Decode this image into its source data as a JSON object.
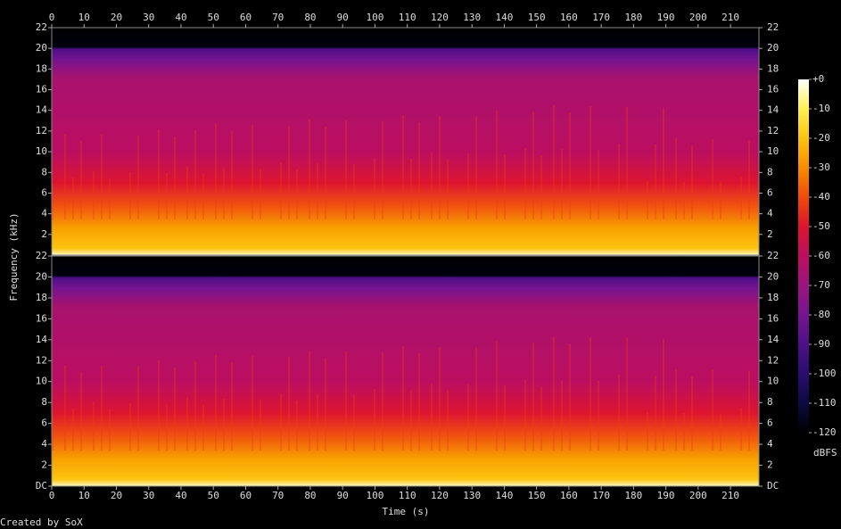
{
  "chart_data": {
    "type": "spectrogram",
    "xlabel": "Time (s)",
    "ylabel": "Frequency (kHz)",
    "xlim": [
      0,
      218.8
    ],
    "xticks": [
      0,
      10,
      20,
      30,
      40,
      50,
      60,
      70,
      80,
      90,
      100,
      110,
      120,
      130,
      140,
      150,
      160,
      170,
      180,
      190,
      200,
      210
    ],
    "channels": [
      {
        "ylim": [
          0,
          22
        ],
        "yticks": [
          2,
          4,
          6,
          8,
          10,
          12,
          14,
          16,
          18,
          20,
          22
        ]
      },
      {
        "ylim": [
          0,
          22
        ],
        "yticks": [
          {
            "value": 0,
            "label": "DC"
          },
          2,
          4,
          6,
          8,
          10,
          12,
          14,
          16,
          18,
          20,
          22
        ]
      }
    ],
    "colorbar": {
      "label": "dBFS",
      "zlim": [
        -120,
        0
      ],
      "zticks": [
        {
          "value": 0,
          "label": "+0"
        },
        -10,
        -20,
        -30,
        -40,
        -50,
        -60,
        -70,
        -80,
        -90,
        -100,
        -110,
        -120
      ],
      "colormap": [
        "#000000",
        "#0c0a40",
        "#2a0c70",
        "#4e1088",
        "#761490",
        "#9c1480",
        "#bc0e60",
        "#dc1430",
        "#f04a08",
        "#f88c00",
        "#fcc410",
        "#fff050",
        "#ffffff"
      ]
    },
    "footer": "Created by SoX"
  }
}
